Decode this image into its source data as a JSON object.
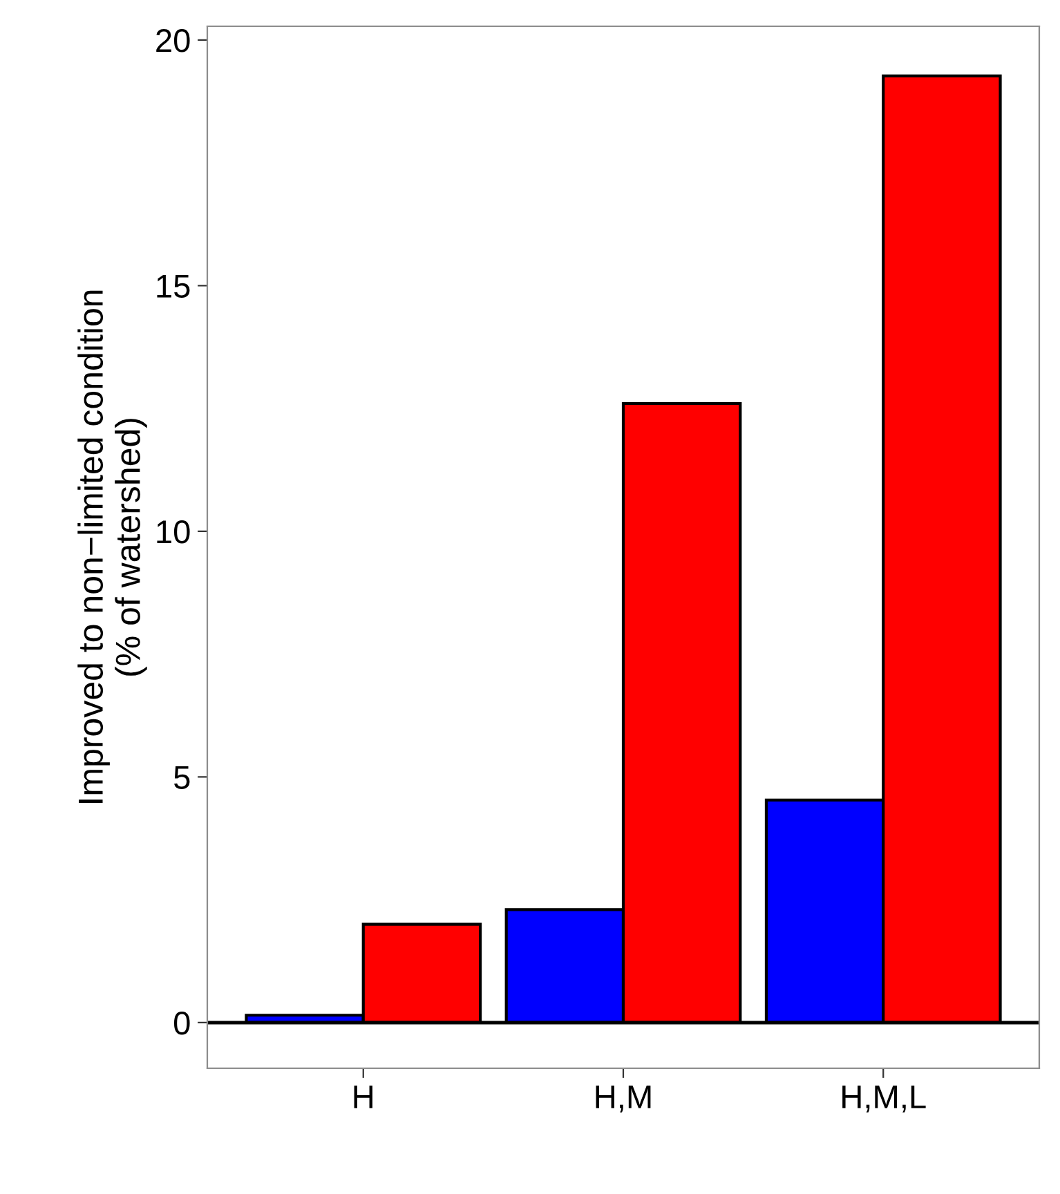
{
  "chart_data": {
    "type": "bar",
    "ylabel": "Improved to non−limited condition\n(% of watershed)",
    "categories": [
      "H",
      "H,M",
      "H,M,L"
    ],
    "series": [
      {
        "color": "#0000ff",
        "values": [
          0.15,
          2.3,
          4.53
        ]
      },
      {
        "color": "#ff0000",
        "values": [
          2.0,
          12.6,
          19.27
        ]
      }
    ],
    "ylim": [
      -0.93,
      20.28
    ],
    "yticks": [
      0,
      5,
      10,
      15,
      20
    ],
    "ref_lines": [
      {
        "axis": "y",
        "value": 0,
        "color": "#000000"
      }
    ],
    "grid": false,
    "legend": false
  }
}
